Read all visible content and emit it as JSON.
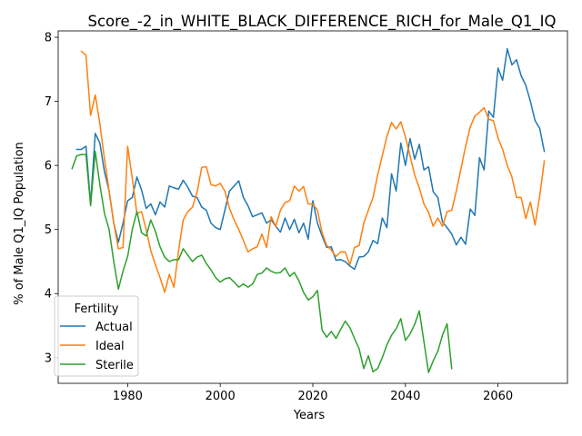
{
  "chart_data": {
    "type": "line",
    "title": "Score_-2_in_WHITE_BLACK_DIFFERENCE_RICH_for_Male_Q1_IQ",
    "xlabel": "Years",
    "ylabel": "% of Male Q1_IQ Population",
    "xlim": [
      1965,
      2075
    ],
    "ylim": [
      2.6,
      8.1
    ],
    "xticks": [
      1980,
      2000,
      2020,
      2040,
      2060
    ],
    "yticks": [
      3,
      4,
      5,
      6,
      7,
      8
    ],
    "grid": false,
    "legend": {
      "title": "Fertility",
      "position": "lower-left"
    },
    "series": [
      {
        "name": "Actual",
        "color": "#1f77b4",
        "x": [
          1969,
          1970,
          1971,
          1972,
          1973,
          1974,
          1975,
          1976,
          1977,
          1978,
          1979,
          1980,
          1981,
          1982,
          1983,
          1984,
          1985,
          1986,
          1987,
          1988,
          1989,
          1990,
          1991,
          1992,
          1993,
          1994,
          1995,
          1996,
          1997,
          1998,
          1999,
          2000,
          2001,
          2002,
          2003,
          2004,
          2005,
          2006,
          2007,
          2008,
          2009,
          2010,
          2011,
          2012,
          2013,
          2014,
          2015,
          2016,
          2017,
          2018,
          2019,
          2020,
          2021,
          2022,
          2023,
          2024,
          2025,
          2026,
          2027,
          2028,
          2029,
          2030,
          2031,
          2032,
          2033,
          2034,
          2035,
          2036,
          2037,
          2038,
          2039,
          2040,
          2041,
          2042,
          2043,
          2044,
          2045,
          2046,
          2047,
          2048,
          2049,
          2050,
          2051,
          2052,
          2053,
          2054,
          2055,
          2056,
          2057,
          2058,
          2059,
          2060,
          2061,
          2062,
          2063,
          2064,
          2065,
          2066,
          2067,
          2068,
          2069,
          2070
        ],
        "y": [
          6.25,
          6.25,
          6.3,
          5.4,
          6.5,
          6.35,
          5.9,
          5.6,
          5.1,
          4.8,
          5.1,
          5.45,
          5.5,
          5.82,
          5.62,
          5.33,
          5.4,
          5.23,
          5.43,
          5.35,
          5.68,
          5.65,
          5.63,
          5.77,
          5.66,
          5.52,
          5.5,
          5.35,
          5.3,
          5.1,
          5.03,
          5.0,
          5.3,
          5.6,
          5.68,
          5.76,
          5.5,
          5.37,
          5.2,
          5.23,
          5.26,
          5.1,
          5.15,
          5.05,
          4.96,
          5.18,
          5.0,
          5.16,
          4.95,
          5.1,
          4.85,
          5.45,
          5.1,
          4.9,
          4.72,
          4.73,
          4.52,
          4.53,
          4.5,
          4.43,
          4.38,
          4.57,
          4.58,
          4.65,
          4.83,
          4.78,
          5.18,
          5.03,
          5.87,
          5.6,
          6.35,
          6.0,
          6.42,
          6.1,
          6.33,
          5.93,
          5.98,
          5.59,
          5.5,
          5.12,
          5.03,
          4.93,
          4.76,
          4.88,
          4.77,
          5.32,
          5.22,
          6.12,
          5.93,
          6.85,
          6.75,
          7.52,
          7.33,
          7.82,
          7.57,
          7.65,
          7.4,
          7.25,
          7.0,
          6.7,
          6.58,
          6.22
        ]
      },
      {
        "name": "Ideal",
        "color": "#ff7f0e",
        "x": [
          1970,
          1971,
          1972,
          1973,
          1974,
          1975,
          1976,
          1977,
          1978,
          1979,
          1980,
          1981,
          1982,
          1983,
          1984,
          1985,
          1986,
          1987,
          1988,
          1989,
          1990,
          1991,
          1992,
          1993,
          1994,
          1995,
          1996,
          1997,
          1998,
          1999,
          2000,
          2001,
          2002,
          2003,
          2004,
          2005,
          2006,
          2007,
          2008,
          2009,
          2010,
          2011,
          2012,
          2013,
          2014,
          2015,
          2016,
          2017,
          2018,
          2019,
          2020,
          2021,
          2022,
          2023,
          2024,
          2025,
          2026,
          2027,
          2028,
          2029,
          2030,
          2031,
          2032,
          2033,
          2034,
          2035,
          2036,
          2037,
          2038,
          2039,
          2040,
          2041,
          2042,
          2043,
          2044,
          2045,
          2046,
          2047,
          2048,
          2049,
          2050,
          2051,
          2052,
          2053,
          2054,
          2055,
          2056,
          2057,
          2058,
          2059,
          2060,
          2061,
          2062,
          2063,
          2064,
          2065,
          2066,
          2067,
          2068,
          2069,
          2070
        ],
        "y": [
          7.78,
          7.72,
          6.78,
          7.1,
          6.65,
          6.1,
          5.6,
          5.1,
          4.7,
          4.72,
          6.3,
          5.8,
          5.25,
          5.28,
          5.0,
          4.67,
          4.45,
          4.25,
          4.02,
          4.3,
          4.1,
          4.67,
          5.15,
          5.28,
          5.35,
          5.58,
          5.97,
          5.98,
          5.7,
          5.68,
          5.72,
          5.6,
          5.33,
          5.15,
          5.0,
          4.83,
          4.65,
          4.7,
          4.73,
          4.93,
          4.72,
          5.2,
          5.05,
          5.3,
          5.42,
          5.45,
          5.68,
          5.6,
          5.67,
          5.4,
          5.4,
          5.3,
          4.95,
          4.75,
          4.68,
          4.58,
          4.65,
          4.65,
          4.45,
          4.72,
          4.75,
          5.1,
          5.3,
          5.5,
          5.85,
          6.15,
          6.45,
          6.67,
          6.57,
          6.68,
          6.45,
          6.15,
          5.85,
          5.65,
          5.4,
          5.27,
          5.05,
          5.18,
          5.05,
          5.28,
          5.3,
          5.6,
          5.95,
          6.3,
          6.6,
          6.77,
          6.83,
          6.9,
          6.72,
          6.7,
          6.43,
          6.25,
          6.0,
          5.82,
          5.5,
          5.5,
          5.17,
          5.43,
          5.07,
          5.52,
          6.07
        ]
      },
      {
        "name": "Sterile",
        "color": "#2ca02c",
        "x": [
          1968,
          1969,
          1970,
          1971,
          1972,
          1973,
          1974,
          1975,
          1976,
          1977,
          1978,
          1979,
          1980,
          1981,
          1982,
          1983,
          1984,
          1985,
          1986,
          1987,
          1988,
          1989,
          1990,
          1991,
          1992,
          1993,
          1994,
          1995,
          1996,
          1997,
          1998,
          1999,
          2000,
          2001,
          2002,
          2003,
          2004,
          2005,
          2006,
          2007,
          2008,
          2009,
          2010,
          2011,
          2012,
          2013,
          2014,
          2015,
          2016,
          2017,
          2018,
          2019,
          2020,
          2021,
          2022,
          2023,
          2024,
          2025,
          2026,
          2027,
          2028,
          2029,
          2030,
          2031,
          2032,
          2033,
          2034,
          2035,
          2036,
          2037,
          2038,
          2039,
          2040,
          2041,
          2042,
          2043,
          2044,
          2045,
          2046,
          2047,
          2048,
          2049,
          2050
        ],
        "y": [
          5.95,
          6.15,
          6.17,
          6.17,
          5.37,
          6.22,
          5.7,
          5.25,
          5.0,
          4.5,
          4.07,
          4.35,
          4.58,
          5.0,
          5.28,
          4.95,
          4.9,
          5.15,
          4.97,
          4.73,
          4.57,
          4.5,
          4.53,
          4.53,
          4.7,
          4.6,
          4.5,
          4.57,
          4.6,
          4.47,
          4.37,
          4.25,
          4.18,
          4.23,
          4.25,
          4.18,
          4.1,
          4.15,
          4.1,
          4.15,
          4.3,
          4.32,
          4.4,
          4.35,
          4.32,
          4.33,
          4.4,
          4.27,
          4.33,
          4.2,
          4.02,
          3.9,
          3.95,
          4.05,
          3.43,
          3.32,
          3.41,
          3.3,
          3.44,
          3.57,
          3.47,
          3.3,
          3.14,
          2.83,
          3.03,
          2.78,
          2.83,
          3.0,
          3.2,
          3.35,
          3.45,
          3.61,
          3.27,
          3.37,
          3.52,
          3.73,
          3.25,
          2.77,
          2.95,
          3.1,
          3.35,
          3.53,
          2.83
        ]
      }
    ]
  }
}
